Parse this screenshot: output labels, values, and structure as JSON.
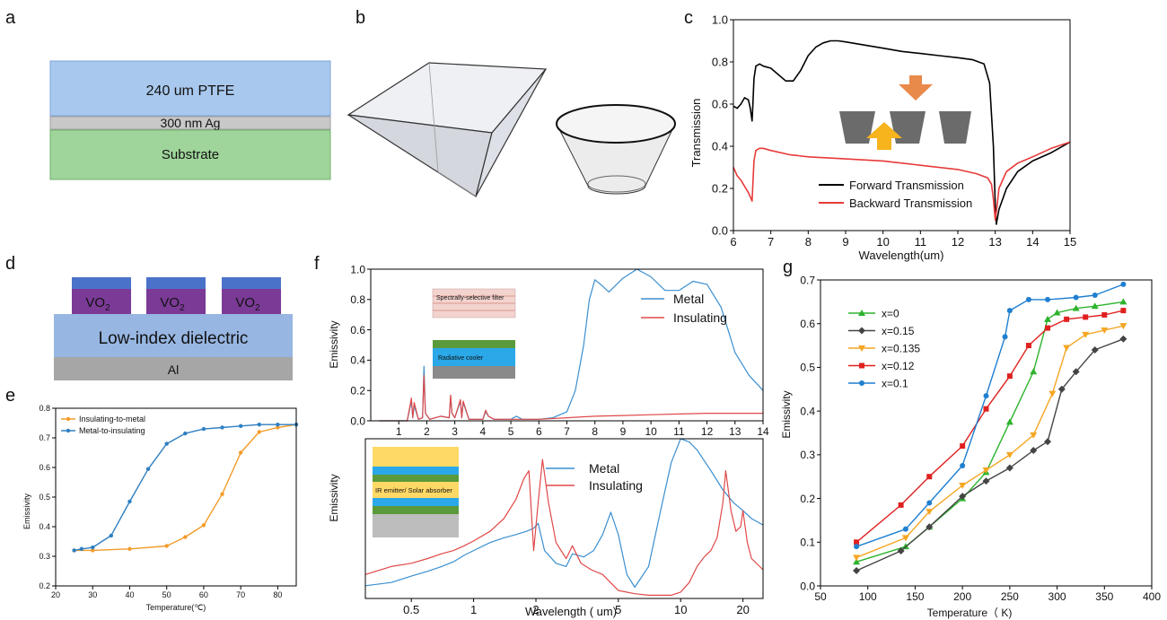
{
  "panels": {
    "a": {
      "letter": "a",
      "layers": [
        {
          "label": "240 um  PTFE",
          "color": "#a9c8ee"
        },
        {
          "label": "300 nm Ag",
          "color": "#c8c8c8"
        },
        {
          "label": "Substrate",
          "color": "#9fd59a"
        }
      ]
    },
    "b": {
      "letter": "b"
    },
    "c": {
      "letter": "c"
    },
    "d": {
      "letter": "d",
      "pillar_labels": [
        "VO",
        "VO",
        "VO"
      ],
      "pillar_subscript": "2",
      "dielectric_label": "Low-index dielectric",
      "base_label": "Al"
    },
    "e": {
      "letter": "e"
    },
    "f": {
      "letter": "f",
      "inset_top": {
        "filter_label": "Spectrally-selective filter",
        "cooler_label": "Radiative cooler"
      },
      "inset_bottom": {
        "label": "IR emitter/ Solar absorber"
      }
    },
    "g": {
      "letter": "g"
    }
  },
  "chart_data": [
    {
      "id": "c",
      "type": "line",
      "xlabel": "Wavelength(um)",
      "ylabel": "Transmission",
      "xlim": [
        6,
        15
      ],
      "ylim": [
        0,
        1.0
      ],
      "xticks": [
        "6",
        "7",
        "8",
        "9",
        "10",
        "11",
        "12",
        "13",
        "14",
        "15"
      ],
      "yticks": [
        "0.0",
        "0.2",
        "0.4",
        "0.6",
        "0.8",
        "1.0"
      ],
      "legend_position": "bottom-left",
      "series": [
        {
          "name": "Forward Transmission",
          "color": "#000000",
          "x": [
            6,
            6.1,
            6.2,
            6.3,
            6.4,
            6.45,
            6.5,
            6.52,
            6.55,
            6.6,
            6.7,
            6.8,
            7.0,
            7.2,
            7.4,
            7.6,
            7.8,
            8.0,
            8.2,
            8.4,
            8.6,
            8.8,
            9.0,
            9.5,
            10,
            10.5,
            11,
            11.5,
            12,
            12.4,
            12.7,
            12.85,
            12.95,
            13.0,
            13.03,
            13.1,
            13.3,
            13.6,
            14,
            14.5,
            15
          ],
          "y": [
            0.59,
            0.58,
            0.6,
            0.63,
            0.62,
            0.58,
            0.52,
            0.6,
            0.72,
            0.78,
            0.79,
            0.78,
            0.77,
            0.74,
            0.71,
            0.71,
            0.76,
            0.83,
            0.87,
            0.89,
            0.9,
            0.9,
            0.895,
            0.88,
            0.865,
            0.85,
            0.84,
            0.83,
            0.82,
            0.81,
            0.79,
            0.7,
            0.4,
            0.12,
            0.03,
            0.1,
            0.2,
            0.28,
            0.33,
            0.37,
            0.42
          ]
        },
        {
          "name": "Backward Transmission",
          "color": "#e83a3a",
          "x": [
            6,
            6.1,
            6.2,
            6.3,
            6.4,
            6.45,
            6.5,
            6.55,
            6.6,
            6.7,
            6.8,
            7.0,
            7.5,
            8,
            9,
            10,
            11,
            12,
            12.5,
            12.8,
            12.9,
            12.95,
            13.0,
            13.05,
            13.1,
            13.3,
            13.6,
            14,
            14.5,
            15
          ],
          "y": [
            0.3,
            0.26,
            0.24,
            0.21,
            0.18,
            0.16,
            0.14,
            0.33,
            0.38,
            0.39,
            0.39,
            0.38,
            0.36,
            0.35,
            0.34,
            0.33,
            0.31,
            0.29,
            0.27,
            0.25,
            0.22,
            0.15,
            0.05,
            0.12,
            0.2,
            0.28,
            0.32,
            0.35,
            0.39,
            0.42
          ]
        }
      ]
    },
    {
      "id": "e",
      "type": "line",
      "xlabel": "Temperature(℃)",
      "ylabel": "Emissivity",
      "xlim": [
        20,
        85
      ],
      "ylim": [
        0.2,
        0.8
      ],
      "xticks": [
        "20",
        "30",
        "40",
        "50",
        "60",
        "70",
        "80"
      ],
      "yticks": [
        "0.2",
        "0.3",
        "0.4",
        "0.5",
        "0.6",
        "0.7",
        "0.8"
      ],
      "legend_position": "top-left",
      "series": [
        {
          "name": "Insulating-to-metal",
          "color": "#f39c2a",
          "x": [
            25,
            30,
            40,
            50,
            55,
            60,
            65,
            70,
            75,
            80,
            85
          ],
          "y": [
            0.32,
            0.32,
            0.325,
            0.335,
            0.365,
            0.405,
            0.51,
            0.65,
            0.72,
            0.735,
            0.745
          ]
        },
        {
          "name": "Metal-to-insulating",
          "color": "#2f7fc1",
          "x": [
            25,
            27,
            30,
            35,
            40,
            45,
            50,
            55,
            60,
            65,
            70,
            75,
            80,
            85
          ],
          "y": [
            0.32,
            0.325,
            0.33,
            0.37,
            0.485,
            0.595,
            0.68,
            0.715,
            0.73,
            0.735,
            0.74,
            0.745,
            0.745,
            0.745
          ]
        }
      ]
    },
    {
      "id": "f-top",
      "type": "line",
      "xlabel": "",
      "ylabel": "Emissivity",
      "xlim": [
        0,
        14
      ],
      "ylim": [
        0,
        1.0
      ],
      "xticks": [
        "1",
        "2",
        "3",
        "4",
        "5",
        "6",
        "7",
        "8",
        "9",
        "10",
        "11",
        "12",
        "13",
        "14"
      ],
      "yticks": [
        "0.0",
        "0.2",
        "0.4",
        "0.6",
        "0.8",
        "1.0"
      ],
      "legend_position": "right",
      "series": [
        {
          "name": "Metal",
          "color": "#3a8fd0",
          "x": [
            0.3,
            1.3,
            1.45,
            1.5,
            1.55,
            1.7,
            1.85,
            1.9,
            1.95,
            2.1,
            2.5,
            2.8,
            2.85,
            2.9,
            3.0,
            3.2,
            3.25,
            3.3,
            3.5,
            4.0,
            4.1,
            4.2,
            4.4,
            5.0,
            5.2,
            5.4,
            6.0,
            6.5,
            7.0,
            7.3,
            7.6,
            7.8,
            8.0,
            8.2,
            8.5,
            9.0,
            9.5,
            10.0,
            10.5,
            11.0,
            11.5,
            12.0,
            12.5,
            13.0,
            13.5,
            14.0
          ],
          "y": [
            0,
            0,
            0.13,
            0.02,
            0.1,
            0.01,
            0.02,
            0.36,
            0.05,
            0.01,
            0.03,
            0.02,
            0.16,
            0.05,
            0.02,
            0.13,
            0.02,
            0.12,
            0.01,
            0.01,
            0.06,
            0.03,
            0.01,
            0.01,
            0.03,
            0.01,
            0.01,
            0.02,
            0.06,
            0.2,
            0.5,
            0.8,
            0.93,
            0.9,
            0.85,
            0.94,
            1.0,
            0.95,
            0.86,
            0.86,
            0.92,
            0.9,
            0.75,
            0.45,
            0.3,
            0.2
          ]
        },
        {
          "name": "Insulating",
          "color": "#e04848",
          "x": [
            0.3,
            1.3,
            1.45,
            1.5,
            1.55,
            1.7,
            1.85,
            1.9,
            1.95,
            2.1,
            2.5,
            2.8,
            2.85,
            2.9,
            3.0,
            3.2,
            3.25,
            3.3,
            3.5,
            4.0,
            4.1,
            4.2,
            4.4,
            5.0,
            6.0,
            7.0,
            8.0,
            9.0,
            10.0,
            11.0,
            12.0,
            13.0,
            14.0
          ],
          "y": [
            0,
            0,
            0.15,
            0.02,
            0.12,
            0.01,
            0.02,
            0.3,
            0.05,
            0.01,
            0.03,
            0.02,
            0.17,
            0.05,
            0.02,
            0.14,
            0.02,
            0.13,
            0.01,
            0.01,
            0.07,
            0.03,
            0.01,
            0.01,
            0.01,
            0.02,
            0.03,
            0.035,
            0.04,
            0.045,
            0.05,
            0.05,
            0.05
          ]
        }
      ]
    },
    {
      "id": "f-bottom",
      "type": "line",
      "xlabel": "Wavelength ( um)",
      "ylabel": "Emissivity",
      "xscale": "log",
      "xlim": [
        0.3,
        25
      ],
      "ylim": [
        0,
        1.0
      ],
      "xticks": [
        "0.5",
        "1",
        "2",
        "5",
        "10",
        "20"
      ],
      "legend_position": "top-center",
      "series": [
        {
          "name": "Metal",
          "color": "#3a8fd0",
          "x": [
            0.3,
            0.4,
            0.5,
            0.6,
            0.7,
            0.8,
            0.9,
            1.0,
            1.2,
            1.4,
            1.6,
            1.8,
            1.95,
            2.05,
            2.2,
            2.5,
            2.8,
            3.0,
            3.4,
            3.8,
            4.2,
            4.6,
            5.0,
            5.5,
            6.0,
            7.0,
            8.0,
            9.0,
            10.0,
            11.0,
            12.0,
            14.0,
            16.0,
            18.0,
            20.0,
            22.0,
            25.0
          ],
          "y": [
            0.08,
            0.1,
            0.14,
            0.17,
            0.2,
            0.23,
            0.27,
            0.3,
            0.35,
            0.38,
            0.4,
            0.42,
            0.44,
            0.47,
            0.3,
            0.22,
            0.2,
            0.28,
            0.26,
            0.3,
            0.4,
            0.54,
            0.4,
            0.15,
            0.07,
            0.2,
            0.55,
            0.85,
            1.0,
            0.98,
            0.93,
            0.8,
            0.68,
            0.6,
            0.55,
            0.5,
            0.46
          ]
        },
        {
          "name": "Insulating",
          "color": "#e04848",
          "x": [
            0.3,
            0.4,
            0.5,
            0.6,
            0.7,
            0.8,
            0.9,
            1.0,
            1.2,
            1.4,
            1.6,
            1.75,
            1.85,
            1.95,
            2.05,
            2.15,
            2.3,
            2.5,
            2.8,
            3.0,
            3.3,
            3.7,
            4.2,
            5.0,
            6.0,
            7.0,
            8.0,
            9.0,
            10.0,
            11.0,
            12.0,
            13.0,
            14.0,
            15.0,
            16.0,
            16.5,
            17.5,
            18.5,
            19.5,
            20.0,
            21.0,
            22.0,
            25.0
          ],
          "y": [
            0.15,
            0.2,
            0.22,
            0.25,
            0.28,
            0.3,
            0.33,
            0.36,
            0.42,
            0.5,
            0.62,
            0.75,
            0.8,
            0.3,
            0.6,
            0.87,
            0.6,
            0.35,
            0.25,
            0.33,
            0.22,
            0.18,
            0.15,
            0.05,
            0.03,
            0.02,
            0.02,
            0.02,
            0.04,
            0.1,
            0.2,
            0.26,
            0.3,
            0.38,
            0.6,
            0.8,
            0.55,
            0.42,
            0.45,
            0.55,
            0.35,
            0.25,
            0.18
          ]
        }
      ]
    },
    {
      "id": "g",
      "type": "line",
      "xlabel": "Temperature（ K)",
      "ylabel": "Emissivity",
      "xlim": [
        50,
        400
      ],
      "ylim": [
        0,
        0.7
      ],
      "xticks": [
        "50",
        "100",
        "150",
        "200",
        "250",
        "300",
        "350",
        "400"
      ],
      "yticks": [
        "0.0",
        "0.1",
        "0.2",
        "0.3",
        "0.4",
        "0.5",
        "0.6",
        "0.7"
      ],
      "legend_position": "top-left",
      "series": [
        {
          "name": "x=0",
          "color": "#2db32d",
          "marker": "triangle-up",
          "x": [
            88,
            140,
            165,
            200,
            225,
            250,
            275,
            290,
            300,
            320,
            340,
            370
          ],
          "y": [
            0.055,
            0.09,
            0.135,
            0.2,
            0.26,
            0.375,
            0.49,
            0.61,
            0.625,
            0.635,
            0.64,
            0.65
          ]
        },
        {
          "name": "x=0.15",
          "color": "#444444",
          "marker": "diamond",
          "x": [
            88,
            135,
            165,
            200,
            225,
            250,
            275,
            290,
            305,
            320,
            340,
            370
          ],
          "y": [
            0.035,
            0.08,
            0.135,
            0.205,
            0.24,
            0.27,
            0.31,
            0.33,
            0.45,
            0.49,
            0.54,
            0.565
          ]
        },
        {
          "name": "x=0.135",
          "color": "#f5a623",
          "marker": "triangle-down",
          "x": [
            88,
            140,
            165,
            200,
            225,
            250,
            275,
            295,
            310,
            330,
            350,
            370
          ],
          "y": [
            0.065,
            0.11,
            0.17,
            0.23,
            0.265,
            0.3,
            0.345,
            0.44,
            0.545,
            0.575,
            0.585,
            0.595
          ]
        },
        {
          "name": "x=0.12",
          "color": "#e02020",
          "marker": "square",
          "x": [
            88,
            135,
            165,
            200,
            225,
            250,
            270,
            290,
            310,
            330,
            350,
            370
          ],
          "y": [
            0.1,
            0.185,
            0.25,
            0.32,
            0.405,
            0.48,
            0.55,
            0.59,
            0.61,
            0.615,
            0.62,
            0.63
          ]
        },
        {
          "name": "x=0.1",
          "color": "#1f7fd0",
          "marker": "circle",
          "x": [
            88,
            140,
            165,
            200,
            225,
            245,
            250,
            270,
            290,
            320,
            340,
            370
          ],
          "y": [
            0.09,
            0.13,
            0.19,
            0.275,
            0.435,
            0.57,
            0.63,
            0.655,
            0.655,
            0.66,
            0.665,
            0.69
          ]
        }
      ]
    }
  ]
}
